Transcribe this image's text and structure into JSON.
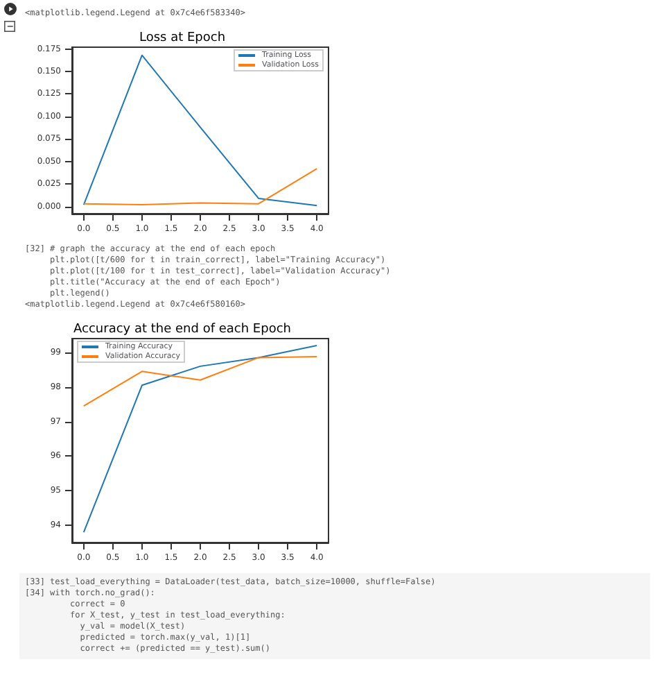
{
  "chart_data": [
    {
      "type": "line",
      "title": "Loss at Epoch",
      "annotations": [
        "<matplotlib.legend.Legend at 0x7c4e6f583340>"
      ],
      "legend": "top right",
      "xlim": [
        -0.2,
        4.2
      ],
      "xticks": [
        {
          "value": 0,
          "label": "0.0"
        },
        {
          "value": 0.5,
          "label": "0.5"
        },
        {
          "value": 1,
          "label": "1.0"
        },
        {
          "value": 1.5,
          "label": "1.5"
        },
        {
          "value": 2,
          "label": "2.0"
        },
        {
          "value": 2.5,
          "label": "2.5"
        },
        {
          "value": 3,
          "label": "3.0"
        },
        {
          "value": 3.5,
          "label": "3.5"
        },
        {
          "value": 4,
          "label": "4.0"
        }
      ],
      "ylim": [
        -0.008,
        0.177
      ],
      "yticks": [
        {
          "value": 0,
          "label": "0.000"
        },
        {
          "value": 0.025,
          "label": "0.025"
        },
        {
          "value": 0.05,
          "label": "0.050"
        },
        {
          "value": 0.075,
          "label": "0.075"
        },
        {
          "value": 0.1,
          "label": "0.100"
        },
        {
          "value": 0.125,
          "label": "0.125"
        },
        {
          "value": 0.15,
          "label": "0.150"
        },
        {
          "value": 0.175,
          "label": "0.175"
        }
      ],
      "x": [
        0,
        1,
        2,
        3,
        4
      ],
      "series": [
        {
          "name": "Training Loss",
          "color": "#1f77b4",
          "values": [
            0.002,
            0.168,
            0.088,
            0.009,
            0.001
          ]
        },
        {
          "name": "Validation Loss",
          "color": "#ff7f0e",
          "values": [
            0.003,
            0.002,
            0.004,
            0.003,
            0.042
          ]
        }
      ]
    },
    {
      "type": "line",
      "title": "Accuracy at the end of each Epoch",
      "annotations": [
        "[32] # graph the accuracy at the end of each epoch",
        "     plt.plot([t/600 for t in train_correct], label=\"Training Accuracy\")",
        "     plt.plot([t/100 for t in test_correct], label=\"Validation Accuracy\")",
        "     plt.title(\"Accuracy at the end of each Epoch\")",
        "     plt.legend()",
        "<matplotlib.legend.Legend at 0x7c4e6f580160>"
      ],
      "legend": "top left",
      "xlim": [
        -0.2,
        4.2
      ],
      "xticks": [
        {
          "value": 0,
          "label": "0.0"
        },
        {
          "value": 0.5,
          "label": "0.5"
        },
        {
          "value": 1,
          "label": "1.0"
        },
        {
          "value": 1.5,
          "label": "1.5"
        },
        {
          "value": 2,
          "label": "2.0"
        },
        {
          "value": 2.5,
          "label": "2.5"
        },
        {
          "value": 3,
          "label": "3.0"
        },
        {
          "value": 3.5,
          "label": "3.5"
        },
        {
          "value": 4,
          "label": "4.0"
        }
      ],
      "ylim": [
        93.5,
        99.4
      ],
      "yticks": [
        94,
        95,
        96,
        97,
        98,
        99
      ],
      "x": [
        0,
        1,
        2,
        3,
        4
      ],
      "series": [
        {
          "name": "Training Accuracy",
          "color": "#1f77b4",
          "values": [
            93.8,
            98.05,
            98.6,
            98.85,
            99.2
          ]
        },
        {
          "name": "Validation Accuracy",
          "color": "#ff7f0e",
          "values": [
            97.45,
            98.45,
            98.2,
            98.85,
            98.88
          ]
        }
      ]
    },
    {
      "type": "other",
      "annotations": [
        "[33] test_load_everything = DataLoader(test_data, batch_size=10000, shuffle=False)",
        "[34] with torch.no_grad():",
        "         correct = 0",
        "         for X_test, y_test in test_load_everything:",
        "           y_val = model(X_test)",
        "           predicted = torch.max(y_val, 1)[1]",
        "           correct += (predicted == y_test).sum()"
      ]
    }
  ]
}
